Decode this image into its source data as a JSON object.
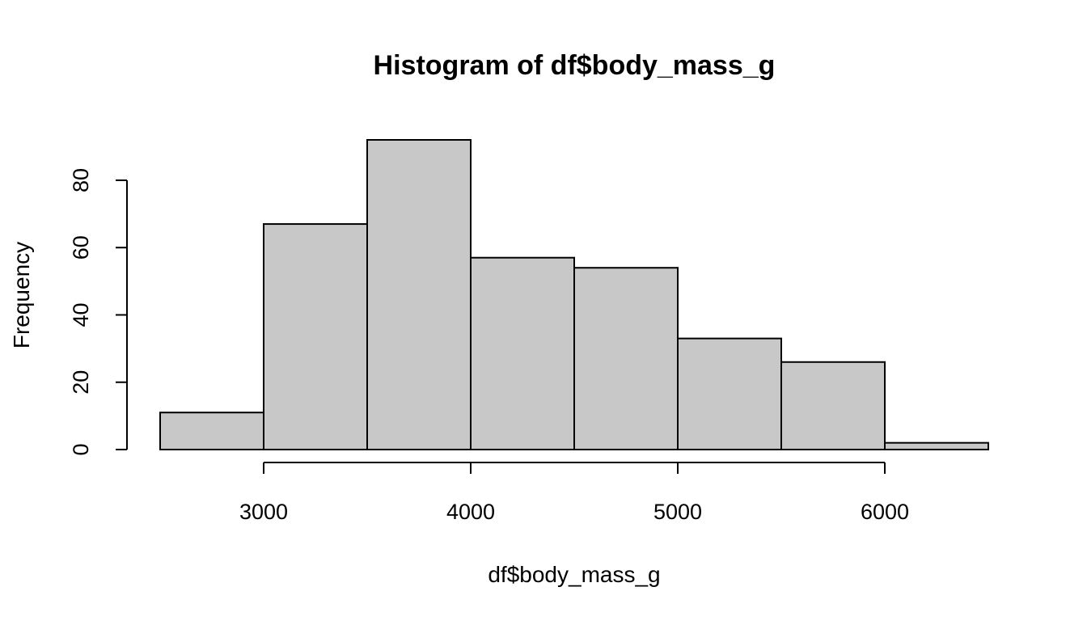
{
  "chart_data": {
    "type": "bar",
    "title": "Histogram of df$body_mass_g",
    "xlabel": "df$body_mass_g",
    "ylabel": "Frequency",
    "bins": [
      {
        "from": 2500,
        "to": 3000,
        "count": 11
      },
      {
        "from": 3000,
        "to": 3500,
        "count": 67
      },
      {
        "from": 3500,
        "to": 4000,
        "count": 92
      },
      {
        "from": 4000,
        "to": 4500,
        "count": 57
      },
      {
        "from": 4500,
        "to": 5000,
        "count": 54
      },
      {
        "from": 5000,
        "to": 5500,
        "count": 33
      },
      {
        "from": 5500,
        "to": 6000,
        "count": 26
      },
      {
        "from": 6000,
        "to": 6500,
        "count": 2
      }
    ],
    "xlim": [
      2500,
      6500
    ],
    "ylim": [
      0,
      92
    ],
    "x_ticks": [
      3000,
      4000,
      5000,
      6000
    ],
    "y_ticks": [
      0,
      20,
      40,
      60,
      80
    ],
    "grid": false,
    "legend": "none",
    "colors": {
      "bar_fill": "#c8c8c8",
      "bar_stroke": "#000000",
      "axis": "#000000",
      "background": "#ffffff"
    }
  }
}
